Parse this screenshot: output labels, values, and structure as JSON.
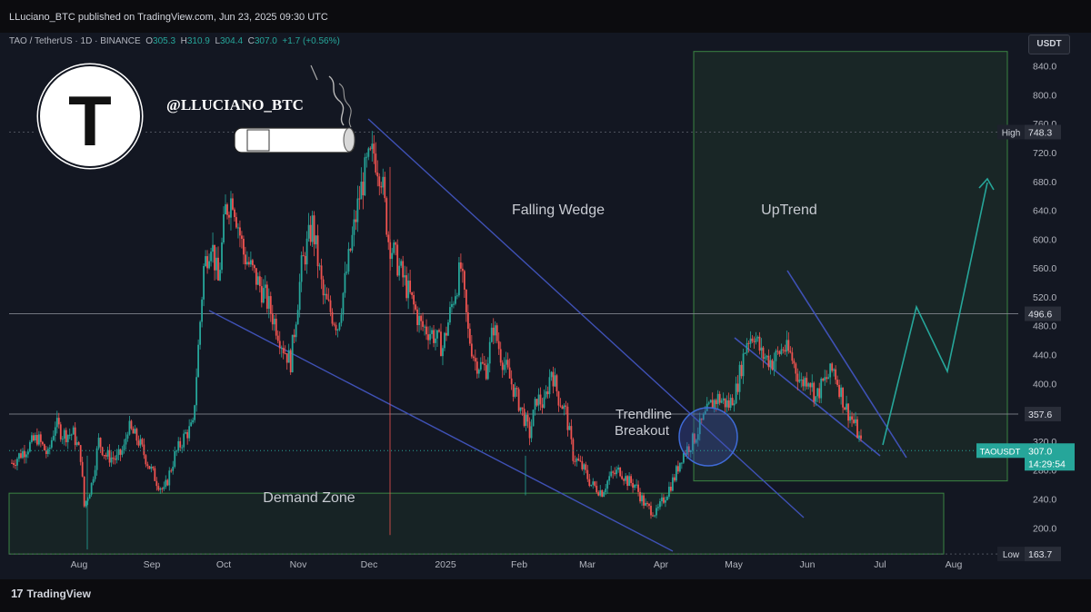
{
  "header": {
    "publish_line": "LLuciano_BTC published on TradingView.com, Jun 23, 2025 09:30 UTC"
  },
  "symbol": {
    "name": "TAO / TetherUS · 1D · BINANCE",
    "o_label": "O",
    "o": "305.3",
    "h_label": "H",
    "h": "310.9",
    "l_label": "L",
    "l": "304.4",
    "c_label": "C",
    "c": "307.0",
    "change": "+1.7 (+0.56%)"
  },
  "currency_button": "USDT",
  "watermark": {
    "handle": "@LLUCIANO_BTC",
    "logo_letter": "T",
    "icon": "cigar-icon"
  },
  "footer": {
    "brand": "TradingView",
    "brand_mark": "17"
  },
  "colors": {
    "up": "#26a69a",
    "down": "#ef5350",
    "trendline": "#3f51b5",
    "zone_border": "#4caf50",
    "projection": "#26a69a",
    "price_tag": "#26a69a"
  },
  "chart_data": {
    "type": "candlestick",
    "ylim": [
      140,
      880
    ],
    "y_ticks": [
      200,
      240,
      280,
      320,
      360,
      400,
      440,
      480,
      520,
      560,
      600,
      640,
      680,
      720,
      760,
      800,
      840
    ],
    "y_tick_labels": [
      "200.0",
      "240.0",
      "280.0",
      "320.0",
      "360.0",
      "400.0",
      "440.0",
      "480.0",
      "520.0",
      "560.0",
      "600.0",
      "640.0",
      "680.0",
      "720.0",
      "760.0",
      "800.0",
      "840.0"
    ],
    "x_ticks": [
      "Aug",
      "Sep",
      "Oct",
      "Nov",
      "Dec",
      "2025",
      "Feb",
      "Mar",
      "Apr",
      "May",
      "Jun",
      "Jul",
      "Aug"
    ],
    "price_path": [
      [
        0,
        290
      ],
      [
        6,
        305
      ],
      [
        14,
        325
      ],
      [
        20,
        300
      ],
      [
        24,
        345
      ],
      [
        28,
        330
      ],
      [
        34,
        330
      ],
      [
        38,
        300
      ],
      [
        40,
        230
      ],
      [
        44,
        260
      ],
      [
        48,
        320
      ],
      [
        52,
        300
      ],
      [
        58,
        295
      ],
      [
        62,
        310
      ],
      [
        64,
        340
      ],
      [
        70,
        320
      ],
      [
        76,
        285
      ],
      [
        80,
        265
      ],
      [
        84,
        250
      ],
      [
        90,
        300
      ],
      [
        96,
        330
      ],
      [
        100,
        340
      ],
      [
        106,
        560
      ],
      [
        110,
        600
      ],
      [
        114,
        540
      ],
      [
        118,
        640
      ],
      [
        122,
        660
      ],
      [
        128,
        580
      ],
      [
        134,
        550
      ],
      [
        140,
        520
      ],
      [
        146,
        480
      ],
      [
        150,
        450
      ],
      [
        154,
        430
      ],
      [
        160,
        560
      ],
      [
        166,
        620
      ],
      [
        172,
        520
      ],
      [
        176,
        500
      ],
      [
        180,
        480
      ],
      [
        186,
        570
      ],
      [
        192,
        660
      ],
      [
        196,
        700
      ],
      [
        200,
        720
      ],
      [
        204,
        690
      ],
      [
        208,
        600
      ],
      [
        214,
        560
      ],
      [
        220,
        520
      ],
      [
        226,
        480
      ],
      [
        232,
        470
      ],
      [
        238,
        450
      ],
      [
        244,
        520
      ],
      [
        248,
        560
      ],
      [
        252,
        470
      ],
      [
        256,
        430
      ],
      [
        262,
        420
      ],
      [
        266,
        480
      ],
      [
        270,
        440
      ],
      [
        276,
        400
      ],
      [
        282,
        360
      ],
      [
        286,
        330
      ],
      [
        290,
        380
      ],
      [
        294,
        370
      ],
      [
        298,
        420
      ],
      [
        302,
        380
      ],
      [
        306,
        360
      ],
      [
        310,
        300
      ],
      [
        316,
        280
      ],
      [
        320,
        260
      ],
      [
        326,
        250
      ],
      [
        330,
        270
      ],
      [
        336,
        280
      ],
      [
        340,
        265
      ],
      [
        344,
        260
      ],
      [
        350,
        230
      ],
      [
        356,
        220
      ],
      [
        360,
        240
      ],
      [
        366,
        270
      ],
      [
        370,
        300
      ],
      [
        376,
        320
      ],
      [
        382,
        350
      ],
      [
        386,
        370
      ],
      [
        390,
        380
      ],
      [
        396,
        370
      ],
      [
        400,
        390
      ],
      [
        406,
        460
      ],
      [
        410,
        470
      ],
      [
        414,
        440
      ],
      [
        420,
        430
      ],
      [
        426,
        450
      ],
      [
        430,
        440
      ],
      [
        436,
        400
      ],
      [
        440,
        410
      ],
      [
        444,
        380
      ],
      [
        448,
        400
      ],
      [
        454,
        420
      ],
      [
        460,
        370
      ],
      [
        466,
        340
      ],
      [
        470,
        307
      ]
    ],
    "path_x_range": [
      0,
      470
    ],
    "path_note": "",
    "last_price": "307.0",
    "countdown": "14:29:54",
    "symbol_tag": "TAOUSDT",
    "levels": [
      {
        "value": 748.3,
        "label": "High",
        "text": "748.3"
      },
      {
        "value": 496.6,
        "label": "",
        "text": "496.6"
      },
      {
        "value": 357.6,
        "label": "",
        "text": "357.6"
      },
      {
        "value": 163.7,
        "label": "Low",
        "text": "163.7"
      }
    ],
    "annotations": {
      "falling_wedge": "Falling Wedge",
      "uptrend": "UpTrend",
      "trendline_breakout_1": "Trendline",
      "trendline_breakout_2": "Breakout",
      "demand_zone": "Demand Zone"
    },
    "demand_zone_range": [
      163.7,
      248
    ],
    "uptrend_box_range": [
      265,
      860
    ]
  }
}
